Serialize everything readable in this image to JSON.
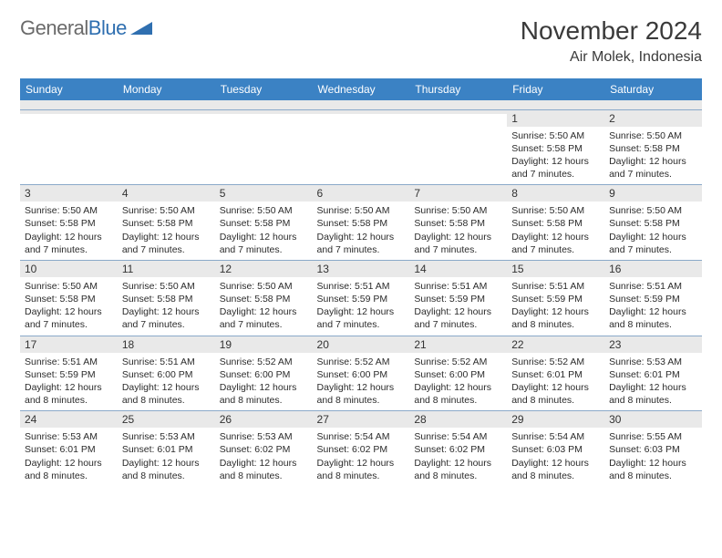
{
  "logo": {
    "text_gray": "General",
    "text_blue": "Blue"
  },
  "title": "November 2024",
  "location": "Air Molek, Indonesia",
  "colors": {
    "header_bg": "#3b82c4",
    "row_border": "#8aa9c9",
    "daynum_bg": "#e9e9e9",
    "text": "#2b2b2b"
  },
  "day_names": [
    "Sunday",
    "Monday",
    "Tuesday",
    "Wednesday",
    "Thursday",
    "Friday",
    "Saturday"
  ],
  "weeks": [
    [
      {
        "n": "",
        "empty": true
      },
      {
        "n": "",
        "empty": true
      },
      {
        "n": "",
        "empty": true
      },
      {
        "n": "",
        "empty": true
      },
      {
        "n": "",
        "empty": true
      },
      {
        "n": "1",
        "sr": "5:50 AM",
        "ss": "5:58 PM",
        "dl": "12 hours and 7 minutes."
      },
      {
        "n": "2",
        "sr": "5:50 AM",
        "ss": "5:58 PM",
        "dl": "12 hours and 7 minutes."
      }
    ],
    [
      {
        "n": "3",
        "sr": "5:50 AM",
        "ss": "5:58 PM",
        "dl": "12 hours and 7 minutes."
      },
      {
        "n": "4",
        "sr": "5:50 AM",
        "ss": "5:58 PM",
        "dl": "12 hours and 7 minutes."
      },
      {
        "n": "5",
        "sr": "5:50 AM",
        "ss": "5:58 PM",
        "dl": "12 hours and 7 minutes."
      },
      {
        "n": "6",
        "sr": "5:50 AM",
        "ss": "5:58 PM",
        "dl": "12 hours and 7 minutes."
      },
      {
        "n": "7",
        "sr": "5:50 AM",
        "ss": "5:58 PM",
        "dl": "12 hours and 7 minutes."
      },
      {
        "n": "8",
        "sr": "5:50 AM",
        "ss": "5:58 PM",
        "dl": "12 hours and 7 minutes."
      },
      {
        "n": "9",
        "sr": "5:50 AM",
        "ss": "5:58 PM",
        "dl": "12 hours and 7 minutes."
      }
    ],
    [
      {
        "n": "10",
        "sr": "5:50 AM",
        "ss": "5:58 PM",
        "dl": "12 hours and 7 minutes."
      },
      {
        "n": "11",
        "sr": "5:50 AM",
        "ss": "5:58 PM",
        "dl": "12 hours and 7 minutes."
      },
      {
        "n": "12",
        "sr": "5:50 AM",
        "ss": "5:58 PM",
        "dl": "12 hours and 7 minutes."
      },
      {
        "n": "13",
        "sr": "5:51 AM",
        "ss": "5:59 PM",
        "dl": "12 hours and 7 minutes."
      },
      {
        "n": "14",
        "sr": "5:51 AM",
        "ss": "5:59 PM",
        "dl": "12 hours and 7 minutes."
      },
      {
        "n": "15",
        "sr": "5:51 AM",
        "ss": "5:59 PM",
        "dl": "12 hours and 8 minutes."
      },
      {
        "n": "16",
        "sr": "5:51 AM",
        "ss": "5:59 PM",
        "dl": "12 hours and 8 minutes."
      }
    ],
    [
      {
        "n": "17",
        "sr": "5:51 AM",
        "ss": "5:59 PM",
        "dl": "12 hours and 8 minutes."
      },
      {
        "n": "18",
        "sr": "5:51 AM",
        "ss": "6:00 PM",
        "dl": "12 hours and 8 minutes."
      },
      {
        "n": "19",
        "sr": "5:52 AM",
        "ss": "6:00 PM",
        "dl": "12 hours and 8 minutes."
      },
      {
        "n": "20",
        "sr": "5:52 AM",
        "ss": "6:00 PM",
        "dl": "12 hours and 8 minutes."
      },
      {
        "n": "21",
        "sr": "5:52 AM",
        "ss": "6:00 PM",
        "dl": "12 hours and 8 minutes."
      },
      {
        "n": "22",
        "sr": "5:52 AM",
        "ss": "6:01 PM",
        "dl": "12 hours and 8 minutes."
      },
      {
        "n": "23",
        "sr": "5:53 AM",
        "ss": "6:01 PM",
        "dl": "12 hours and 8 minutes."
      }
    ],
    [
      {
        "n": "24",
        "sr": "5:53 AM",
        "ss": "6:01 PM",
        "dl": "12 hours and 8 minutes."
      },
      {
        "n": "25",
        "sr": "5:53 AM",
        "ss": "6:01 PM",
        "dl": "12 hours and 8 minutes."
      },
      {
        "n": "26",
        "sr": "5:53 AM",
        "ss": "6:02 PM",
        "dl": "12 hours and 8 minutes."
      },
      {
        "n": "27",
        "sr": "5:54 AM",
        "ss": "6:02 PM",
        "dl": "12 hours and 8 minutes."
      },
      {
        "n": "28",
        "sr": "5:54 AM",
        "ss": "6:02 PM",
        "dl": "12 hours and 8 minutes."
      },
      {
        "n": "29",
        "sr": "5:54 AM",
        "ss": "6:03 PM",
        "dl": "12 hours and 8 minutes."
      },
      {
        "n": "30",
        "sr": "5:55 AM",
        "ss": "6:03 PM",
        "dl": "12 hours and 8 minutes."
      }
    ]
  ],
  "labels": {
    "sunrise": "Sunrise:",
    "sunset": "Sunset:",
    "daylight": "Daylight:"
  }
}
